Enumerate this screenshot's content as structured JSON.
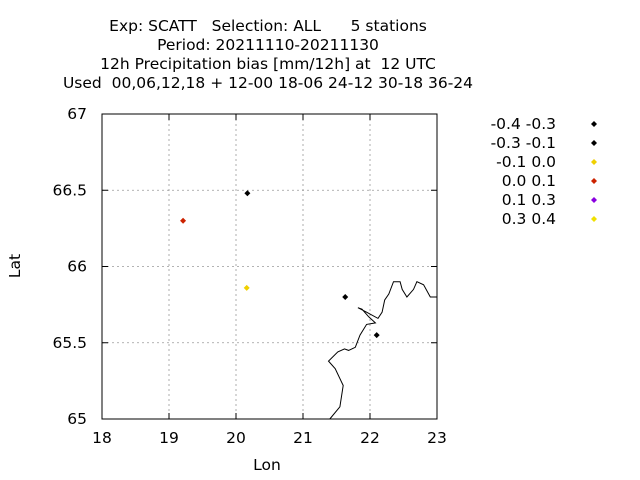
{
  "title_lines": [
    "Exp: SCATT   Selection: ALL      5 stations",
    "Period: 20211110-20211130",
    "12h Precipitation bias [mm/12h] at  12 UTC",
    "Used  00,06,12,18 + 12-00 18-06 24-12 30-18 36-24"
  ],
  "chart_data": {
    "type": "scatter",
    "xlabel": "Lon",
    "ylabel": "Lat",
    "xlim": [
      18,
      23
    ],
    "ylim": [
      65,
      67
    ],
    "x_ticks": [
      "18",
      "19",
      "20",
      "21",
      "22",
      "23"
    ],
    "y_ticks": [
      "65",
      "65.5",
      "66",
      "66.5",
      "67"
    ],
    "grid": true,
    "legend_position": "right",
    "legend": [
      {
        "label": "-0.4 -0.3",
        "color": "#000000"
      },
      {
        "label": "-0.3 -0.1",
        "color": "#000000"
      },
      {
        "label": "-0.1 0.0",
        "color": "#f0d000"
      },
      {
        "label": "0.0 0.1",
        "color": "#cc2200"
      },
      {
        "label": "0.1 0.3",
        "color": "#8a00e0"
      },
      {
        "label": "0.3 0.4",
        "color": "#f0e000"
      }
    ],
    "points": [
      {
        "lon": 20.17,
        "lat": 66.48,
        "class": 1
      },
      {
        "lon": 19.21,
        "lat": 66.3,
        "class": 3
      },
      {
        "lon": 20.16,
        "lat": 65.86,
        "class": 2
      },
      {
        "lon": 21.63,
        "lat": 65.8,
        "class": 1
      },
      {
        "lon": 22.1,
        "lat": 65.55,
        "class": 0
      }
    ],
    "coastline": [
      [
        21.4,
        65.0
      ],
      [
        21.55,
        65.08
      ],
      [
        21.6,
        65.22
      ],
      [
        21.48,
        65.33
      ],
      [
        21.38,
        65.38
      ],
      [
        21.52,
        65.44
      ],
      [
        21.62,
        65.46
      ],
      [
        21.68,
        65.45
      ],
      [
        21.78,
        65.47
      ],
      [
        21.85,
        65.55
      ],
      [
        21.95,
        65.62
      ],
      [
        22.08,
        65.63
      ],
      [
        21.98,
        65.67
      ],
      [
        21.88,
        65.72
      ],
      [
        21.82,
        65.73
      ],
      [
        21.95,
        65.7
      ],
      [
        22.12,
        65.66
      ],
      [
        22.18,
        65.7
      ],
      [
        22.22,
        65.78
      ],
      [
        22.28,
        65.82
      ],
      [
        22.35,
        65.9
      ],
      [
        22.45,
        65.9
      ],
      [
        22.48,
        65.85
      ],
      [
        22.55,
        65.8
      ],
      [
        22.65,
        65.85
      ],
      [
        22.7,
        65.9
      ],
      [
        22.8,
        65.88
      ],
      [
        22.9,
        65.8
      ],
      [
        23.0,
        65.8
      ]
    ]
  }
}
